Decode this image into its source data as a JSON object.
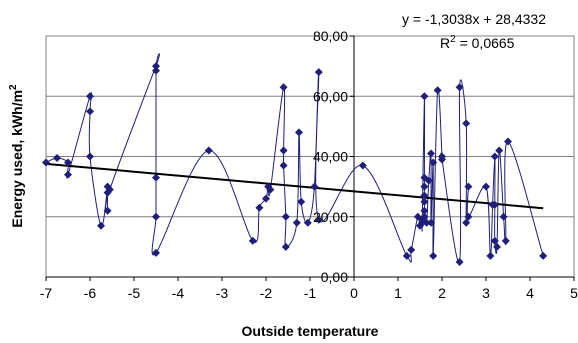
{
  "chart_data": {
    "type": "scatter",
    "xlabel": "Outside temperature",
    "ylabel": "Energy used, kWh/m",
    "ylabel_superscript": "2",
    "xlim": [
      -7,
      5
    ],
    "ylim": [
      0,
      80
    ],
    "x_ticks": [
      "-7",
      "-6",
      "-5",
      "-4",
      "-3",
      "-2",
      "-1",
      "0",
      "1",
      "2",
      "3",
      "4",
      "5"
    ],
    "x_tick_values": [
      -7,
      -6,
      -5,
      -4,
      -3,
      -2,
      -1,
      0,
      1,
      2,
      3,
      4,
      5
    ],
    "y_ticks": [
      "0,00",
      "20,00",
      "40,00",
      "60,00",
      "80,00"
    ],
    "y_tick_values": [
      0,
      20,
      40,
      60,
      80
    ],
    "grid": "horizontal",
    "series_color": "#1f1f7a",
    "trendline_color": "#000000",
    "trendline": {
      "slope": -1.3038,
      "intercept": 28.4332,
      "x_range": [
        -7,
        4.3
      ],
      "equation": "y = -1,3038x + 28,4332",
      "r2_label": "R",
      "r2_sup": "2",
      "r2_value": " = 0,0665"
    },
    "x": [
      -7.0,
      -6.75,
      -6.5,
      -6.5,
      -6.0,
      -6.0,
      -6.0,
      -5.75,
      -5.6,
      -5.6,
      -5.6,
      -5.55,
      -4.5,
      -4.5,
      -4.5,
      -4.5,
      -4.5,
      -3.3,
      -2.3,
      -2.15,
      -2.0,
      -1.95,
      -1.9,
      -1.6,
      -1.6,
      -1.6,
      -1.55,
      -1.55,
      -1.3,
      -1.25,
      -1.2,
      -1.05,
      -0.9,
      -0.8,
      -0.8,
      0.2,
      1.2,
      1.3,
      1.45,
      1.5,
      1.55,
      1.55,
      1.6,
      1.6,
      1.6,
      1.6,
      1.6,
      1.6,
      1.6,
      1.65,
      1.7,
      1.75,
      1.75,
      1.8,
      1.8,
      1.9,
      2.0,
      2.0,
      2.4,
      2.4,
      2.55,
      2.55,
      2.6,
      2.6,
      3.0,
      3.1,
      3.15,
      3.2,
      3.2,
      3.2,
      3.25,
      3.3,
      3.4,
      3.45,
      3.5,
      4.3
    ],
    "y": [
      38,
      39.5,
      38,
      34,
      60,
      55,
      40,
      17,
      30,
      28,
      22,
      29,
      70,
      68.5,
      33,
      20,
      8,
      42,
      12,
      23,
      26,
      30,
      29,
      63,
      42,
      37,
      20,
      10,
      18,
      48,
      25,
      18,
      30,
      68,
      19,
      37,
      7,
      9,
      20,
      17,
      19,
      18,
      60,
      33,
      30,
      27,
      25,
      22,
      20,
      18,
      32,
      41,
      18,
      38,
      7,
      62,
      40,
      39,
      5,
      63,
      51,
      18,
      30,
      20,
      30,
      7,
      24,
      40,
      24,
      12,
      10,
      42,
      20,
      12,
      45,
      7
    ]
  }
}
